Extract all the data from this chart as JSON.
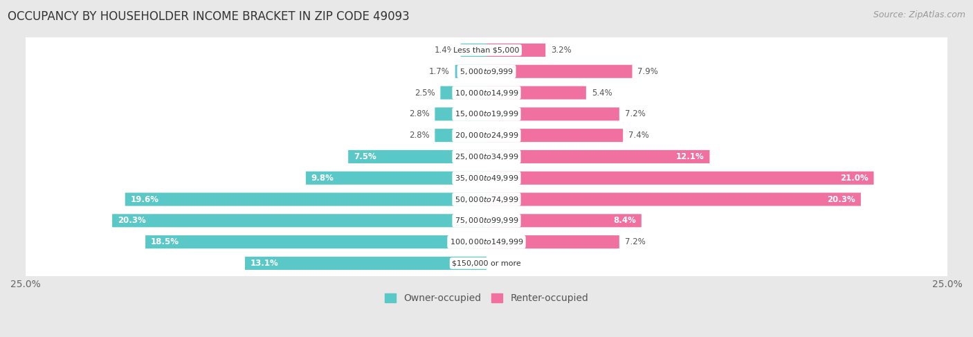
{
  "title": "OCCUPANCY BY HOUSEHOLDER INCOME BRACKET IN ZIP CODE 49093",
  "source": "Source: ZipAtlas.com",
  "categories": [
    "Less than $5,000",
    "$5,000 to $9,999",
    "$10,000 to $14,999",
    "$15,000 to $19,999",
    "$20,000 to $24,999",
    "$25,000 to $34,999",
    "$35,000 to $49,999",
    "$50,000 to $74,999",
    "$75,000 to $99,999",
    "$100,000 to $149,999",
    "$150,000 or more"
  ],
  "owner_values": [
    1.4,
    1.7,
    2.5,
    2.8,
    2.8,
    7.5,
    9.8,
    19.6,
    20.3,
    18.5,
    13.1
  ],
  "renter_values": [
    3.2,
    7.9,
    5.4,
    7.2,
    7.4,
    12.1,
    21.0,
    20.3,
    8.4,
    7.2,
    0.0
  ],
  "owner_color": "#5BC8C8",
  "renter_color": "#F070A0",
  "axis_limit": 25.0,
  "background_color": "#e8e8e8",
  "bar_background": "#ffffff",
  "title_fontsize": 12,
  "source_fontsize": 9,
  "legend_fontsize": 10,
  "bar_height": 0.62,
  "label_fontsize": 8.5,
  "cat_label_fontsize": 8.0
}
